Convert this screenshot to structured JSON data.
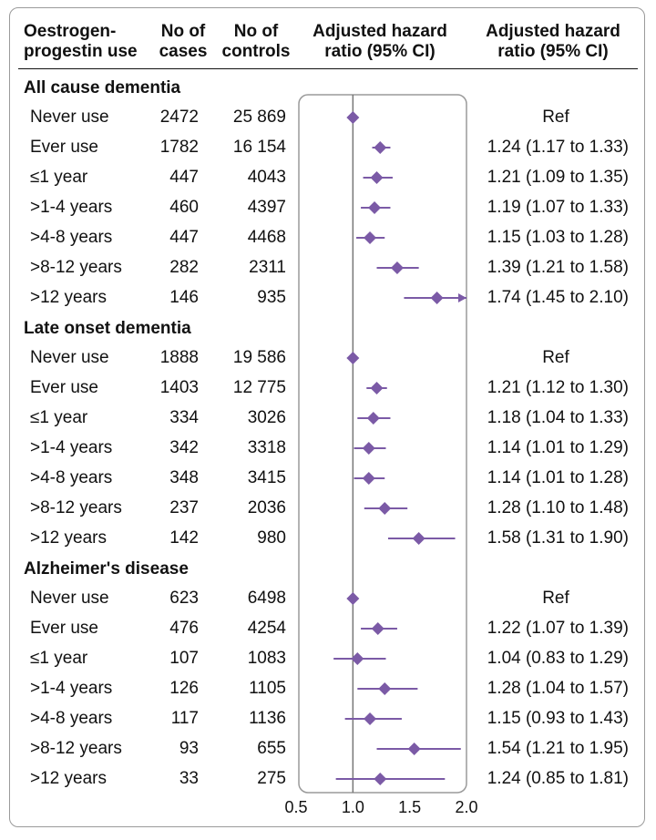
{
  "colors": {
    "accent": "#7b5aa6",
    "axis": "#9a9a9a",
    "text": "#111111"
  },
  "headers": {
    "col1": [
      "Oestrogen-",
      "progestin use"
    ],
    "col2": [
      "No of",
      "cases"
    ],
    "col3": [
      "No of",
      "controls"
    ],
    "col4": [
      "Adjusted hazard",
      "ratio (95% CI)"
    ],
    "col5": [
      "Adjusted hazard",
      "ratio (95% CI)"
    ]
  },
  "chart_data": {
    "type": "forest",
    "xlim": [
      0.5,
      2.0
    ],
    "xticks": [
      "0.5",
      "1.0",
      "1.5",
      "2.0"
    ],
    "reference_line": 1.0,
    "sections": [
      {
        "title": "All cause dementia",
        "rows": [
          {
            "label": "Never use",
            "cases": "2472",
            "controls": "25 869",
            "hr": 1.0,
            "lo": 1.0,
            "hi": 1.0,
            "text": "Ref",
            "is_ref": true
          },
          {
            "label": "Ever use",
            "cases": "1782",
            "controls": "16 154",
            "hr": 1.24,
            "lo": 1.17,
            "hi": 1.33,
            "text": "1.24 (1.17 to 1.33)"
          },
          {
            "label": "≤1 year",
            "cases": "447",
            "controls": "4043",
            "hr": 1.21,
            "lo": 1.09,
            "hi": 1.35,
            "text": "1.21 (1.09 to 1.35)"
          },
          {
            "label": ">1-4 years",
            "cases": "460",
            "controls": "4397",
            "hr": 1.19,
            "lo": 1.07,
            "hi": 1.33,
            "text": "1.19 (1.07 to 1.33)"
          },
          {
            "label": ">4-8 years",
            "cases": "447",
            "controls": "4468",
            "hr": 1.15,
            "lo": 1.03,
            "hi": 1.28,
            "text": "1.15 (1.03 to 1.28)"
          },
          {
            "label": ">8-12 years",
            "cases": "282",
            "controls": "2311",
            "hr": 1.39,
            "lo": 1.21,
            "hi": 1.58,
            "text": "1.39 (1.21 to 1.58)"
          },
          {
            "label": ">12 years",
            "cases": "146",
            "controls": "935",
            "hr": 1.74,
            "lo": 1.45,
            "hi": 2.1,
            "text": "1.74 (1.45 to 2.10)",
            "arrow": true
          }
        ]
      },
      {
        "title": "Late onset dementia",
        "rows": [
          {
            "label": "Never use",
            "cases": "1888",
            "controls": "19 586",
            "hr": 1.0,
            "lo": 1.0,
            "hi": 1.0,
            "text": "Ref",
            "is_ref": true
          },
          {
            "label": "Ever use",
            "cases": "1403",
            "controls": "12 775",
            "hr": 1.21,
            "lo": 1.12,
            "hi": 1.3,
            "text": "1.21 (1.12 to 1.30)"
          },
          {
            "label": "≤1 year",
            "cases": "334",
            "controls": "3026",
            "hr": 1.18,
            "lo": 1.04,
            "hi": 1.33,
            "text": "1.18 (1.04 to 1.33)"
          },
          {
            "label": ">1-4 years",
            "cases": "342",
            "controls": "3318",
            "hr": 1.14,
            "lo": 1.01,
            "hi": 1.29,
            "text": "1.14 (1.01 to 1.29)"
          },
          {
            "label": ">4-8 years",
            "cases": "348",
            "controls": "3415",
            "hr": 1.14,
            "lo": 1.01,
            "hi": 1.28,
            "text": "1.14 (1.01 to 1.28)"
          },
          {
            "label": ">8-12 years",
            "cases": "237",
            "controls": "2036",
            "hr": 1.28,
            "lo": 1.1,
            "hi": 1.48,
            "text": "1.28 (1.10 to 1.48)"
          },
          {
            "label": ">12 years",
            "cases": "142",
            "controls": "980",
            "hr": 1.58,
            "lo": 1.31,
            "hi": 1.9,
            "text": "1.58 (1.31 to 1.90)"
          }
        ]
      },
      {
        "title": "Alzheimer's disease",
        "rows": [
          {
            "label": "Never use",
            "cases": "623",
            "controls": "6498",
            "hr": 1.0,
            "lo": 1.0,
            "hi": 1.0,
            "text": "Ref",
            "is_ref": true
          },
          {
            "label": "Ever use",
            "cases": "476",
            "controls": "4254",
            "hr": 1.22,
            "lo": 1.07,
            "hi": 1.39,
            "text": "1.22 (1.07 to 1.39)"
          },
          {
            "label": "≤1 year",
            "cases": "107",
            "controls": "1083",
            "hr": 1.04,
            "lo": 0.83,
            "hi": 1.29,
            "text": "1.04 (0.83 to 1.29)"
          },
          {
            "label": ">1-4 years",
            "cases": "126",
            "controls": "1105",
            "hr": 1.28,
            "lo": 1.04,
            "hi": 1.57,
            "text": "1.28 (1.04 to 1.57)"
          },
          {
            "label": ">4-8 years",
            "cases": "117",
            "controls": "1136",
            "hr": 1.15,
            "lo": 0.93,
            "hi": 1.43,
            "text": "1.15 (0.93 to 1.43)"
          },
          {
            "label": ">8-12 years",
            "cases": "93",
            "controls": "655",
            "hr": 1.54,
            "lo": 1.21,
            "hi": 1.95,
            "text": "1.54 (1.21 to 1.95)"
          },
          {
            "label": ">12 years",
            "cases": "33",
            "controls": "275",
            "hr": 1.24,
            "lo": 0.85,
            "hi": 1.81,
            "text": "1.24 (0.85 to 1.81)"
          }
        ]
      }
    ]
  }
}
